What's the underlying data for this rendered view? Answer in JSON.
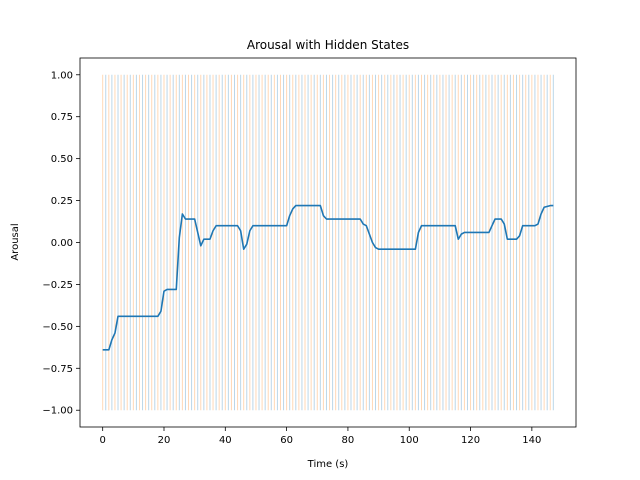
{
  "chart_data": {
    "type": "line",
    "title": "Arousal with Hidden States",
    "xlabel": "Time (s)",
    "ylabel": "Arousal",
    "xlim": [
      -7.4,
      154.4
    ],
    "ylim": [
      -1.1,
      1.1
    ],
    "x_ticks": [
      0,
      20,
      40,
      60,
      80,
      100,
      120,
      140
    ],
    "y_ticks": [
      -1.0,
      -0.75,
      -0.5,
      -0.25,
      0.0,
      0.25,
      0.5,
      0.75,
      1.0
    ],
    "x_tick_labels": [
      "0",
      "20",
      "40",
      "60",
      "80",
      "100",
      "120",
      "140"
    ],
    "y_tick_labels": [
      "−1.00",
      "−0.75",
      "−0.50",
      "−0.25",
      "0.00",
      "0.25",
      "0.50",
      "0.75",
      "1.00"
    ],
    "grid": false,
    "hidden_states": {
      "x_start": 0,
      "x_end": 147,
      "step": 1,
      "y_range": [
        -1.0,
        1.0
      ],
      "colors": [
        "#ff7f0e",
        "#1f77b4"
      ],
      "alpha": 0.3
    },
    "series": [
      {
        "color": "#1f77b4",
        "x": [
          0,
          2,
          3,
          4,
          5,
          18,
          19,
          20,
          21,
          24,
          25,
          26,
          27,
          30,
          31,
          32,
          33,
          35,
          36,
          37,
          44,
          45,
          46,
          47,
          48,
          49,
          60,
          61,
          62,
          63,
          71,
          72,
          73,
          84,
          85,
          86,
          87,
          88,
          89,
          90,
          102,
          103,
          104,
          115,
          116,
          117,
          118,
          126,
          127,
          128,
          130,
          131,
          132,
          135,
          136,
          137,
          141,
          142,
          143,
          144,
          146,
          147
        ],
        "values": [
          -0.64,
          -0.64,
          -0.58,
          -0.54,
          -0.44,
          -0.44,
          -0.41,
          -0.29,
          -0.28,
          -0.28,
          0.03,
          0.17,
          0.14,
          0.14,
          0.06,
          -0.02,
          0.02,
          0.02,
          0.07,
          0.1,
          0.1,
          0.07,
          -0.04,
          -0.01,
          0.07,
          0.1,
          0.1,
          0.16,
          0.2,
          0.22,
          0.22,
          0.16,
          0.14,
          0.14,
          0.11,
          0.1,
          0.05,
          0.0,
          -0.03,
          -0.04,
          -0.04,
          0.06,
          0.1,
          0.1,
          0.02,
          0.05,
          0.06,
          0.06,
          0.1,
          0.14,
          0.14,
          0.11,
          0.02,
          0.02,
          0.04,
          0.1,
          0.1,
          0.11,
          0.17,
          0.21,
          0.22,
          0.22
        ]
      }
    ]
  }
}
